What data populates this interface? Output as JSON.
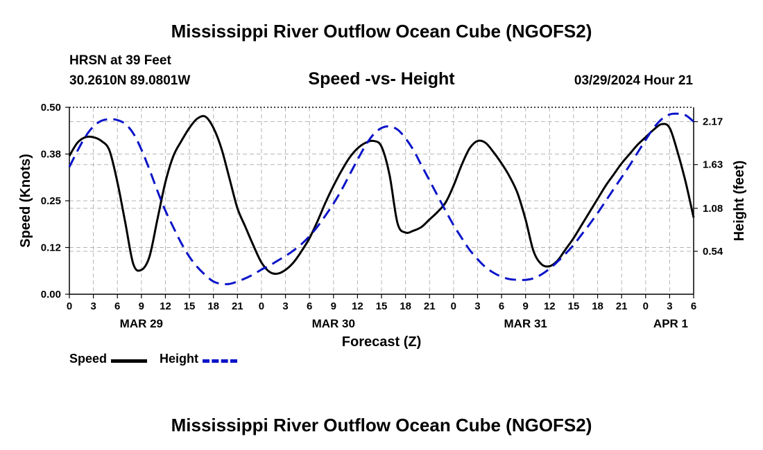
{
  "page": {
    "title_top": "Mississippi River Outflow Ocean Cube (NGOFS2)",
    "title_bottom": "Mississippi River Outflow Ocean Cube (NGOFS2)"
  },
  "station": {
    "name": "HRSN at 39 Feet",
    "coords": "30.2610N  89.0801W"
  },
  "timestamp": "03/29/2024 Hour 21",
  "legend": {
    "speed_label": "Speed",
    "height_label": "Height"
  },
  "colors": {
    "speed": "#000000",
    "height": "#0b14c8",
    "grid": "#b4b4b4"
  },
  "chart_data": {
    "type": "line",
    "title": "Speed -vs- Height",
    "xlabel": "Forecast (Z)",
    "ylabel": "Speed (Knots)",
    "y2label": "Height (feet)",
    "xlim": [
      0,
      78
    ],
    "ylim": [
      0,
      0.5
    ],
    "y2lim": [
      0.0,
      2.35
    ],
    "grid": true,
    "x_ticks": [
      0,
      3,
      6,
      9,
      12,
      15,
      18,
      21,
      24,
      27,
      30,
      33,
      36,
      39,
      42,
      45,
      48,
      51,
      54,
      57,
      60,
      63,
      66,
      69,
      72,
      75,
      78
    ],
    "x_tick_labels": [
      "0",
      "3",
      "6",
      "9",
      "12",
      "15",
      "18",
      "21",
      "0",
      "3",
      "6",
      "9",
      "12",
      "15",
      "18",
      "21",
      "0",
      "3",
      "6",
      "9",
      "12",
      "15",
      "18",
      "21",
      "0",
      "3",
      "6"
    ],
    "date_labels": [
      {
        "x": 9,
        "label": "MAR 29"
      },
      {
        "x": 33,
        "label": "MAR 30"
      },
      {
        "x": 57,
        "label": "MAR 31"
      },
      {
        "x": 78,
        "label": "APR 1"
      }
    ],
    "y_ticks": [
      0.0,
      0.125,
      0.25,
      0.375,
      0.5
    ],
    "y_tick_labels": [
      "0.00",
      "0.12",
      "0.25",
      "0.38",
      "0.50"
    ],
    "y2_ticks": [
      0.54,
      1.08,
      1.63,
      2.17
    ],
    "y2_tick_labels": [
      "0.54",
      "1.08",
      "1.63",
      "2.17"
    ],
    "series": [
      {
        "name": "Speed",
        "axis": "left",
        "style": "solid",
        "x": [
          0,
          1,
          2,
          3,
          4,
          5,
          6,
          7,
          8,
          9,
          10,
          11,
          12,
          13,
          14,
          15,
          16,
          17,
          18,
          19,
          20,
          21,
          22,
          23,
          24,
          25,
          26,
          27,
          28,
          29,
          30,
          31,
          32,
          33,
          34,
          35,
          36,
          37,
          38,
          39,
          40,
          41,
          42,
          43,
          44,
          45,
          46,
          47,
          48,
          49,
          50,
          51,
          52,
          53,
          54,
          55,
          56,
          57,
          58,
          59,
          60,
          61,
          62,
          63,
          64,
          65,
          66,
          67,
          68,
          69,
          70,
          71,
          72,
          73,
          74,
          75,
          76,
          77,
          78
        ],
        "values": [
          0.37,
          0.405,
          0.42,
          0.42,
          0.41,
          0.385,
          0.3,
          0.19,
          0.08,
          0.065,
          0.1,
          0.2,
          0.3,
          0.37,
          0.41,
          0.445,
          0.47,
          0.475,
          0.445,
          0.39,
          0.31,
          0.23,
          0.18,
          0.13,
          0.085,
          0.06,
          0.055,
          0.065,
          0.085,
          0.115,
          0.15,
          0.195,
          0.245,
          0.29,
          0.33,
          0.365,
          0.39,
          0.405,
          0.41,
          0.395,
          0.32,
          0.19,
          0.165,
          0.17,
          0.18,
          0.2,
          0.22,
          0.245,
          0.29,
          0.345,
          0.39,
          0.41,
          0.405,
          0.38,
          0.35,
          0.315,
          0.27,
          0.2,
          0.115,
          0.08,
          0.075,
          0.09,
          0.12,
          0.15,
          0.185,
          0.22,
          0.255,
          0.29,
          0.32,
          0.35,
          0.375,
          0.4,
          0.42,
          0.44,
          0.455,
          0.445,
          0.38,
          0.3,
          0.205
        ]
      },
      {
        "name": "Height",
        "axis": "right",
        "style": "dashed",
        "x": [
          0,
          1,
          2,
          3,
          4,
          5,
          6,
          7,
          8,
          9,
          10,
          11,
          12,
          13,
          14,
          15,
          16,
          17,
          18,
          19,
          20,
          21,
          22,
          23,
          24,
          25,
          26,
          27,
          28,
          29,
          30,
          31,
          32,
          33,
          34,
          35,
          36,
          37,
          38,
          39,
          40,
          41,
          42,
          43,
          44,
          45,
          46,
          47,
          48,
          49,
          50,
          51,
          52,
          53,
          54,
          55,
          56,
          57,
          58,
          59,
          60,
          61,
          62,
          63,
          64,
          65,
          66,
          67,
          68,
          69,
          70,
          71,
          72,
          73,
          74,
          75,
          76,
          77,
          78
        ],
        "values": [
          1.6,
          1.8,
          1.98,
          2.11,
          2.18,
          2.2,
          2.19,
          2.14,
          2.02,
          1.82,
          1.57,
          1.3,
          1.05,
          0.84,
          0.64,
          0.47,
          0.34,
          0.24,
          0.16,
          0.13,
          0.13,
          0.16,
          0.2,
          0.25,
          0.31,
          0.36,
          0.42,
          0.48,
          0.55,
          0.63,
          0.73,
          0.85,
          0.99,
          1.14,
          1.31,
          1.5,
          1.69,
          1.87,
          2.01,
          2.09,
          2.11,
          2.07,
          1.96,
          1.81,
          1.62,
          1.43,
          1.24,
          1.05,
          0.87,
          0.71,
          0.56,
          0.44,
          0.34,
          0.27,
          0.22,
          0.19,
          0.18,
          0.18,
          0.2,
          0.25,
          0.32,
          0.41,
          0.51,
          0.62,
          0.75,
          0.88,
          1.02,
          1.17,
          1.32,
          1.47,
          1.62,
          1.78,
          1.94,
          2.09,
          2.2,
          2.26,
          2.27,
          2.25,
          2.17
        ]
      }
    ]
  }
}
